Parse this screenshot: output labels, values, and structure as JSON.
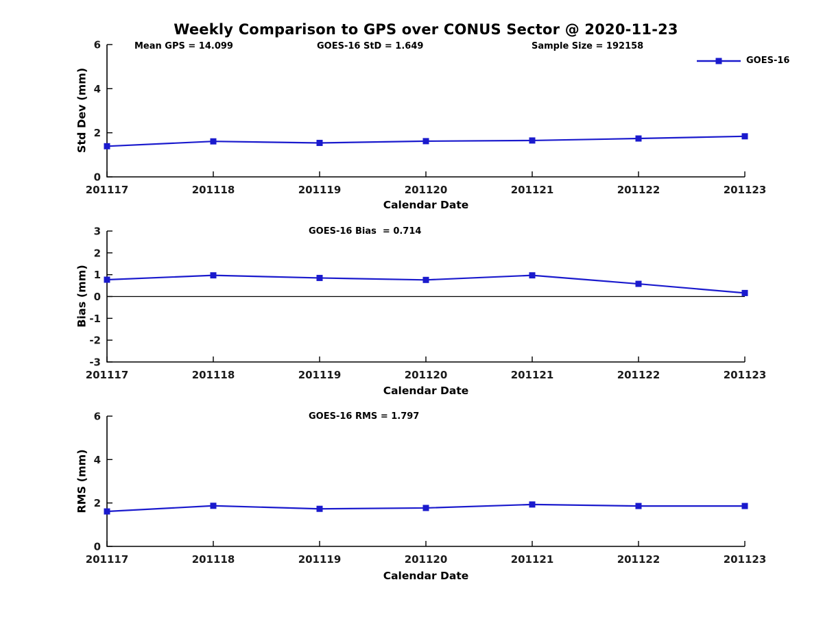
{
  "title": "Weekly Comparison to GPS over CONUS Sector @ 2020-11-23",
  "header_stats": {
    "mean_gps": "Mean GPS = 14.099",
    "goes16_std": "GOES-16 StD = 1.649",
    "sample_size": "Sample Size = 192158"
  },
  "legend": {
    "label": "GOES-16"
  },
  "colors": {
    "line": "#1a1acd",
    "axis": "#000000",
    "text": "#000000",
    "background": "#ffffff"
  },
  "chart_data": [
    {
      "type": "line",
      "name": "std-dev",
      "title": "",
      "annotation": "",
      "categories": [
        "201117",
        "201118",
        "201119",
        "201120",
        "201121",
        "201122",
        "201123"
      ],
      "series": [
        {
          "name": "GOES-16",
          "values": [
            1.39,
            1.61,
            1.54,
            1.62,
            1.65,
            1.74,
            1.84
          ]
        }
      ],
      "xlabel": "Calendar Date",
      "ylabel": "Std Dev (mm)",
      "ylim": [
        0,
        6
      ],
      "yticks": [
        0,
        2,
        4,
        6
      ],
      "grid": false,
      "zero_line": false,
      "legend_position": "upper-right-above-axes",
      "marker": "square"
    },
    {
      "type": "line",
      "name": "bias",
      "title": "",
      "annotation": "GOES-16 Bias  = 0.714",
      "categories": [
        "201117",
        "201118",
        "201119",
        "201120",
        "201121",
        "201122",
        "201123"
      ],
      "series": [
        {
          "name": "GOES-16",
          "values": [
            0.77,
            0.97,
            0.85,
            0.76,
            0.97,
            0.58,
            0.16
          ]
        }
      ],
      "xlabel": "Calendar Date",
      "ylabel": "Bias (mm)",
      "ylim": [
        -3,
        3
      ],
      "yticks": [
        -3,
        -2,
        -1,
        0,
        1,
        2,
        3
      ],
      "grid": false,
      "zero_line": true,
      "marker": "square"
    },
    {
      "type": "line",
      "name": "rms",
      "title": "",
      "annotation": "GOES-16 RMS = 1.797",
      "categories": [
        "201117",
        "201118",
        "201119",
        "201120",
        "201121",
        "201122",
        "201123"
      ],
      "series": [
        {
          "name": "GOES-16",
          "values": [
            1.61,
            1.87,
            1.73,
            1.77,
            1.93,
            1.86,
            1.86
          ]
        }
      ],
      "xlabel": "Calendar Date",
      "ylabel": "RMS (mm)",
      "ylim": [
        0,
        6
      ],
      "yticks": [
        0,
        2,
        4,
        6
      ],
      "grid": false,
      "zero_line": false,
      "marker": "square"
    }
  ]
}
